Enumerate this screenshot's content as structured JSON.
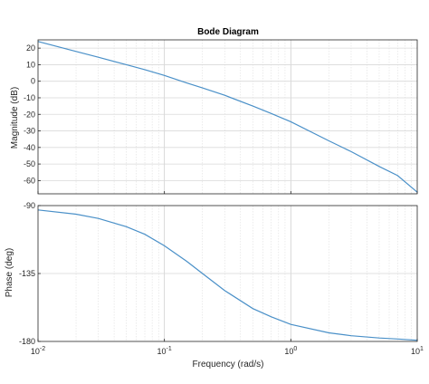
{
  "chart_data": {
    "type": "line",
    "title": "Bode Diagram",
    "xlabel": "Frequency  (rad/s)",
    "x_scale": "log",
    "xlim": [
      0.01,
      10
    ],
    "x_ticks": [
      {
        "base": "10",
        "exp": "-2"
      },
      {
        "base": "10",
        "exp": "-1"
      },
      {
        "base": "10",
        "exp": "0"
      },
      {
        "base": "10",
        "exp": "1"
      }
    ],
    "grid": true,
    "line_color": "#4a90c8",
    "panels": [
      {
        "name": "magnitude",
        "ylabel": "Magnitude (dB)",
        "ylim": [
          -68,
          25
        ],
        "y_ticks": [
          "20",
          "10",
          "0",
          "-10",
          "-20",
          "-30",
          "-40",
          "-50",
          "-60"
        ],
        "x": [
          0.01,
          0.02,
          0.03,
          0.05,
          0.07,
          0.1,
          0.15,
          0.2,
          0.3,
          0.5,
          0.7,
          1,
          2,
          3,
          5,
          7,
          10
        ],
        "y": [
          24,
          18,
          14.5,
          10,
          7,
          3.5,
          -1,
          -4,
          -8.5,
          -15,
          -19.5,
          -24.5,
          -36,
          -42.5,
          -51.5,
          -57,
          -67
        ]
      },
      {
        "name": "phase",
        "ylabel": "Phase (deg)",
        "ylim": [
          -180,
          -90
        ],
        "y_ticks": [
          "-90",
          "-135",
          "-180"
        ],
        "x": [
          0.01,
          0.02,
          0.03,
          0.05,
          0.07,
          0.1,
          0.15,
          0.2,
          0.3,
          0.5,
          0.7,
          1,
          2,
          3,
          5,
          7,
          10
        ],
        "y": [
          -92.9,
          -95.7,
          -98.5,
          -104,
          -109,
          -116.6,
          -126.9,
          -135,
          -146.3,
          -158.2,
          -163.7,
          -168.7,
          -174.3,
          -176.2,
          -177.7,
          -178.4,
          -179.2
        ]
      }
    ]
  }
}
